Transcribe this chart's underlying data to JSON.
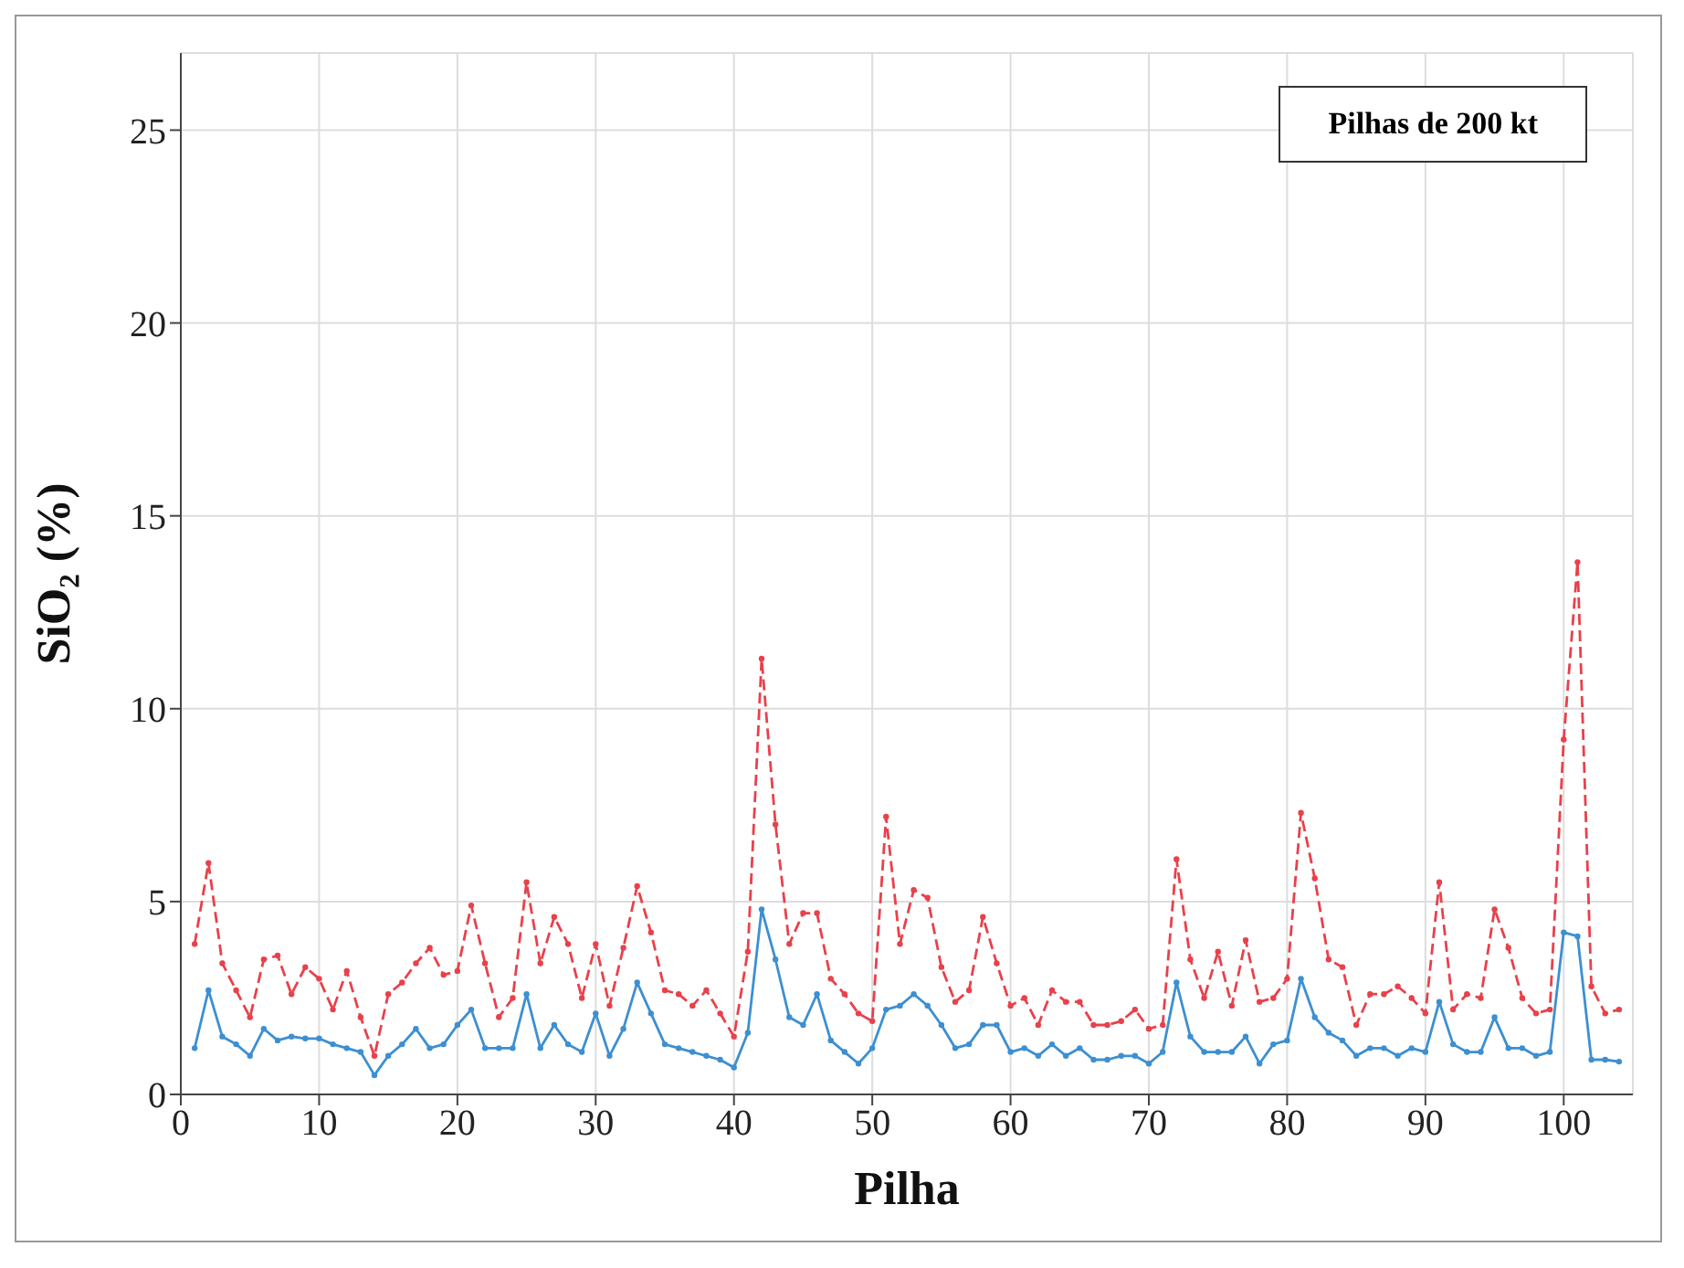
{
  "chart_data": {
    "type": "line",
    "xlabel": "Pilha",
    "ylabel": "SiO₂ (%)",
    "annotations": [
      "Pilhas de 200 kt"
    ],
    "x": [
      1,
      2,
      3,
      4,
      5,
      6,
      7,
      8,
      9,
      10,
      11,
      12,
      13,
      14,
      15,
      16,
      17,
      18,
      19,
      20,
      21,
      22,
      23,
      24,
      25,
      26,
      27,
      28,
      29,
      30,
      31,
      32,
      33,
      34,
      35,
      36,
      37,
      38,
      39,
      40,
      41,
      42,
      43,
      44,
      45,
      46,
      47,
      48,
      49,
      50,
      51,
      52,
      53,
      54,
      55,
      56,
      57,
      58,
      59,
      60,
      61,
      62,
      63,
      64,
      65,
      66,
      67,
      68,
      69,
      70,
      71,
      72,
      73,
      74,
      75,
      76,
      77,
      78,
      79,
      80,
      81,
      82,
      83,
      84,
      85,
      86,
      87,
      88,
      89,
      90,
      91,
      92,
      93,
      94,
      95,
      96,
      97,
      98,
      99,
      100,
      101,
      102,
      103,
      104
    ],
    "series": [
      {
        "color": "#e8414b",
        "line_style": "dashed",
        "values": [
          3.9,
          6.0,
          3.4,
          2.7,
          2.0,
          3.5,
          3.6,
          2.6,
          3.3,
          3.0,
          2.2,
          3.2,
          2.0,
          1.0,
          2.6,
          2.9,
          3.4,
          3.8,
          3.1,
          3.2,
          4.9,
          3.4,
          2.0,
          2.5,
          5.5,
          3.4,
          4.6,
          3.9,
          2.5,
          3.9,
          2.3,
          3.8,
          5.4,
          4.2,
          2.7,
          2.6,
          2.3,
          2.7,
          2.1,
          1.5,
          3.7,
          11.3,
          7.0,
          3.9,
          4.7,
          4.7,
          3.0,
          2.6,
          2.1,
          1.9,
          7.2,
          3.9,
          5.3,
          5.1,
          3.3,
          2.4,
          2.7,
          4.6,
          3.4,
          2.3,
          2.5,
          1.8,
          2.7,
          2.4,
          2.4,
          1.8,
          1.8,
          1.9,
          2.2,
          1.7,
          1.8,
          6.1,
          3.5,
          2.5,
          3.7,
          2.3,
          4.0,
          2.4,
          2.5,
          3.0,
          7.3,
          5.6,
          3.5,
          3.3,
          1.8,
          2.6,
          2.6,
          2.8,
          2.5,
          2.1,
          5.5,
          2.2,
          2.6,
          2.5,
          4.8,
          3.8,
          2.5,
          2.1,
          2.2,
          9.2,
          13.8,
          2.8,
          2.1,
          2.2
        ]
      },
      {
        "color": "#3d8fd1",
        "line_style": "solid",
        "values": [
          1.2,
          2.7,
          1.5,
          1.3,
          1.0,
          1.7,
          1.4,
          1.5,
          1.45,
          1.45,
          1.3,
          1.2,
          1.1,
          0.5,
          1.0,
          1.3,
          1.7,
          1.2,
          1.3,
          1.8,
          2.2,
          1.2,
          1.2,
          1.2,
          2.6,
          1.2,
          1.8,
          1.3,
          1.1,
          2.1,
          1.0,
          1.7,
          2.9,
          2.1,
          1.3,
          1.2,
          1.1,
          1.0,
          0.9,
          0.7,
          1.6,
          4.8,
          3.5,
          2.0,
          1.8,
          2.6,
          1.4,
          1.1,
          0.8,
          1.2,
          2.2,
          2.3,
          2.6,
          2.3,
          1.8,
          1.2,
          1.3,
          1.8,
          1.8,
          1.1,
          1.2,
          1.0,
          1.3,
          1.0,
          1.2,
          0.9,
          0.9,
          1.0,
          1.0,
          0.8,
          1.1,
          2.9,
          1.5,
          1.1,
          1.1,
          1.1,
          1.5,
          0.8,
          1.3,
          1.4,
          3.0,
          2.0,
          1.6,
          1.4,
          1.0,
          1.2,
          1.2,
          1.0,
          1.2,
          1.1,
          2.4,
          1.3,
          1.1,
          1.1,
          2.0,
          1.2,
          1.2,
          1.0,
          1.1,
          4.2,
          4.1,
          0.9,
          0.9,
          0.85
        ]
      }
    ],
    "xlim": [
      0,
      105
    ],
    "xticks": [
      0,
      10,
      20,
      30,
      40,
      50,
      60,
      70,
      80,
      90,
      100
    ],
    "ylim": [
      0,
      27
    ],
    "yticks": [
      0,
      5,
      10,
      15,
      20,
      25
    ],
    "grid": true,
    "marker": "circle"
  }
}
